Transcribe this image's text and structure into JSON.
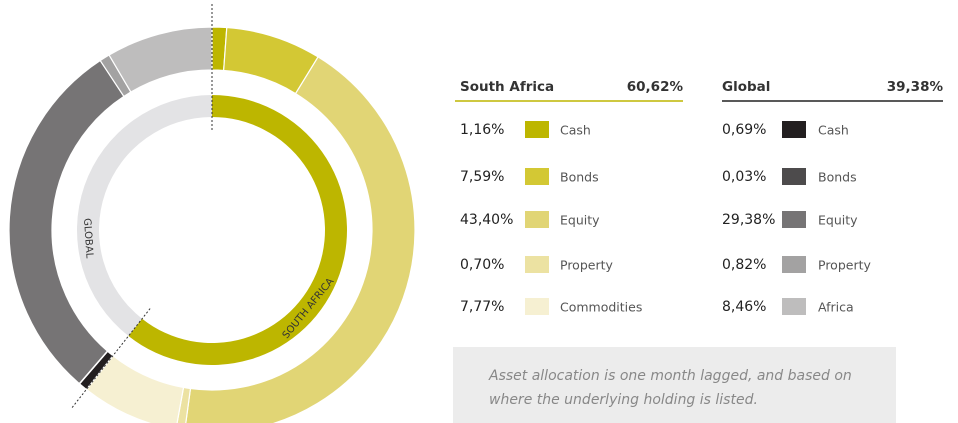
{
  "chart_data": {
    "type": "donut",
    "groups": [
      {
        "name": "South Africa",
        "total": 60.62,
        "total_label": "60,62%",
        "ring_label": "SOUTH AFRICA",
        "color": "#bdb600",
        "categories": [
          "Cash",
          "Bonds",
          "Equity",
          "Property",
          "Commodities"
        ],
        "values": [
          1.16,
          7.59,
          43.4,
          0.7,
          7.77
        ],
        "value_labels": [
          "1,16%",
          "7,59%",
          "43,40%",
          "0,70%",
          "7,77%"
        ],
        "colors": [
          "#bdb600",
          "#d3c834",
          "#e1d575",
          "#ece2a2",
          "#f6f0d2"
        ]
      },
      {
        "name": "Global",
        "total": 39.38,
        "total_label": "39,38%",
        "ring_label": "GLOBAL",
        "color": "#e3e3e5",
        "categories": [
          "Cash",
          "Bonds",
          "Equity",
          "Property",
          "Africa"
        ],
        "values": [
          0.69,
          0.03,
          29.38,
          0.82,
          8.46
        ],
        "value_labels": [
          "0,69%",
          "0,03%",
          "29,38%",
          "0,82%",
          "8,46%"
        ],
        "colors": [
          "#231f20",
          "#4d4b4c",
          "#767475",
          "#a3a2a2",
          "#bebdbd"
        ]
      }
    ],
    "note": [
      "Asset allocation is one month lagged, and based on",
      "where the underlying holding is listed."
    ]
  }
}
